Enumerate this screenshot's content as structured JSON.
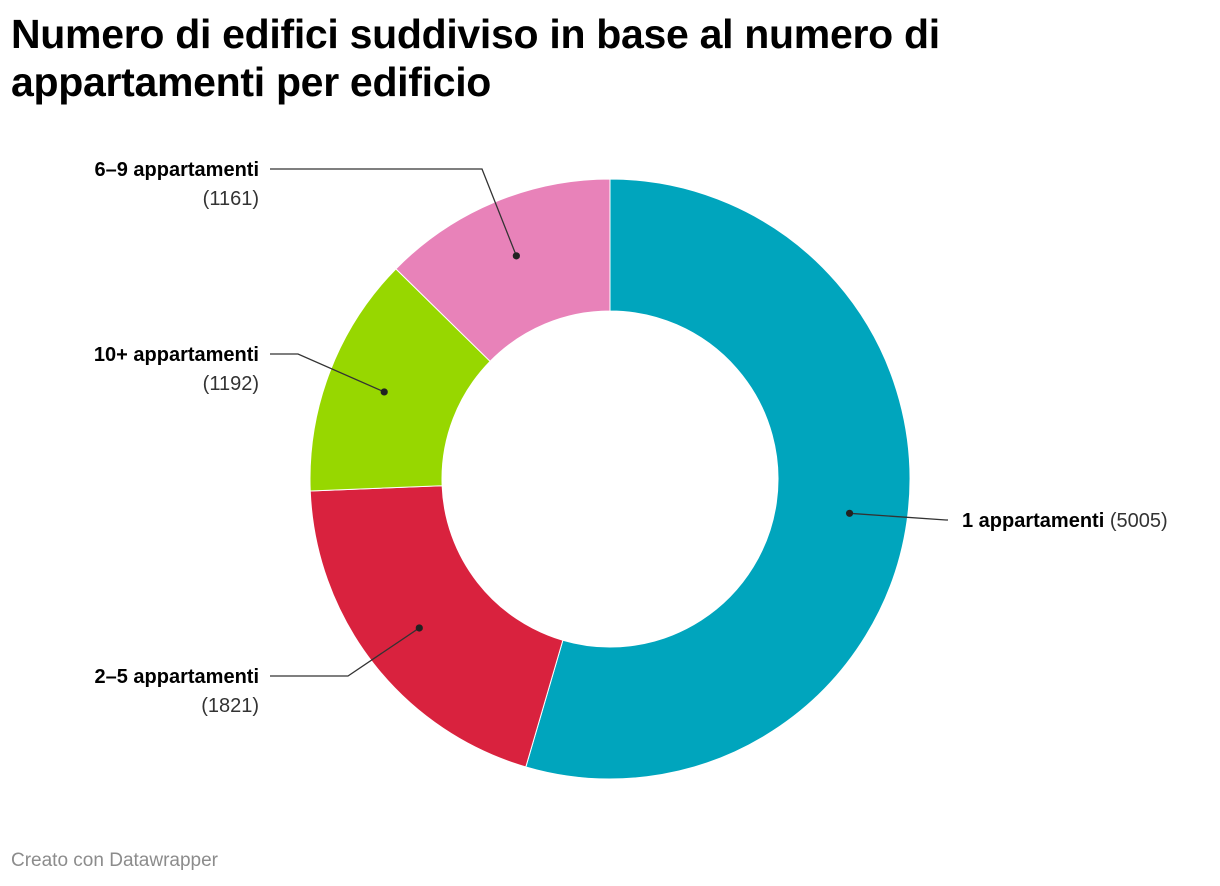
{
  "chart_data": {
    "type": "pie",
    "variant": "donut",
    "title": "Numero di edifici suddiviso in base al numero di appartamenti per edificio",
    "slices": [
      {
        "label": "1 appartamenti",
        "value": 5005,
        "value_text": "(5005)",
        "color": "#00a5bd"
      },
      {
        "label": "2–5 appartamenti",
        "value": 1821,
        "value_text": "(1821)",
        "color": "#d9223e"
      },
      {
        "label": "10+ appartamenti",
        "value": 1192,
        "value_text": "(1192)",
        "color": "#97d700"
      },
      {
        "label": "6–9 appartamenti",
        "value": 1161,
        "value_text": "(1161)",
        "color": "#e882b9"
      }
    ],
    "legend": "none",
    "labels": "outside-with-leader-lines"
  },
  "footer": {
    "credit": "Creato con Datawrapper"
  }
}
